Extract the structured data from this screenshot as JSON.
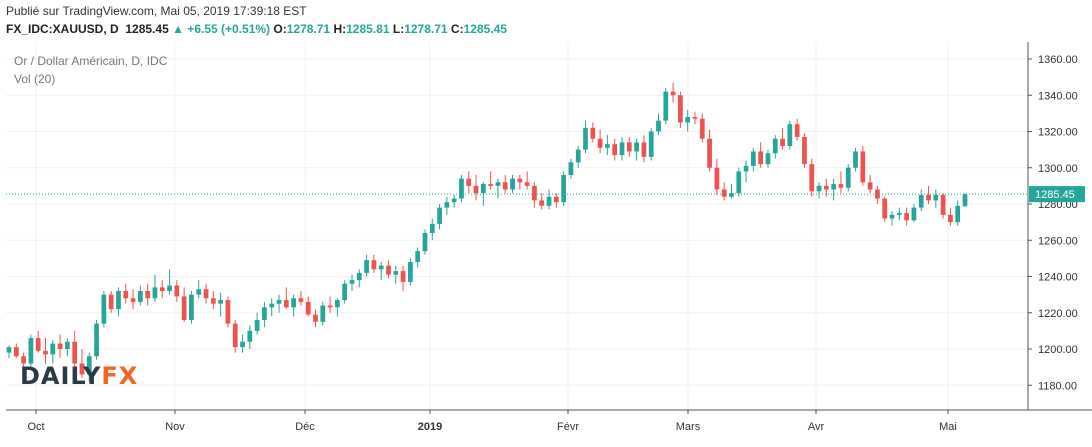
{
  "header": {
    "published": "Publié sur TradingView.com, Mai 05, 2019 17:39:18 EST",
    "symbol": "FX_IDC:XAUUSD, D",
    "last": "1285.45",
    "change": "▲ +6.55 (+0.51%)",
    "open_label": "O:",
    "open": "1278.71",
    "high_label": "H:",
    "high": "1285.81",
    "low_label": "L:",
    "low": "1278.71",
    "close_label": "C:",
    "close": "1285.45"
  },
  "legend": {
    "series_title": "Or / Dollar Américain, D, IDC",
    "volume": "Vol (20)"
  },
  "watermark": {
    "part1": "DAILY",
    "part2": "FX"
  },
  "colors": {
    "up": "#26a69a",
    "down": "#ef5350",
    "grid": "#eef1f4",
    "price_line": "#26a69a",
    "axis": "#555555",
    "watermark_dark": "#2c3a46",
    "watermark_accent": "#f26522"
  },
  "chart_data": {
    "type": "candlestick",
    "title": "Or / Dollar Américain, D, IDC",
    "ylim": [
      1165,
      1365
    ],
    "y_ticks": [
      "1360.00",
      "1340.00",
      "1320.00",
      "1300.00",
      "1280.00",
      "1260.00",
      "1240.00",
      "1220.00",
      "1200.00",
      "1180.00"
    ],
    "x_ticks": [
      "Oct",
      "Nov",
      "Déc",
      "2019",
      "Févr",
      "Mars",
      "Avr",
      "Mai"
    ],
    "last_price_label": "1285.45",
    "last_price": 1285.45,
    "grid": true,
    "candles": [
      [
        1198,
        1202,
        1195,
        1201
      ],
      [
        1201,
        1203,
        1195,
        1196
      ],
      [
        1196,
        1198,
        1190,
        1192
      ],
      [
        1192,
        1208,
        1190,
        1206
      ],
      [
        1206,
        1210,
        1198,
        1199
      ],
      [
        1199,
        1206,
        1192,
        1197
      ],
      [
        1197,
        1205,
        1192,
        1203
      ],
      [
        1203,
        1208,
        1195,
        1200
      ],
      [
        1200,
        1206,
        1196,
        1204
      ],
      [
        1204,
        1210,
        1188,
        1192
      ],
      [
        1192,
        1200,
        1184,
        1186
      ],
      [
        1186,
        1198,
        1182,
        1196
      ],
      [
        1196,
        1216,
        1194,
        1214
      ],
      [
        1214,
        1232,
        1212,
        1230
      ],
      [
        1230,
        1232,
        1220,
        1222
      ],
      [
        1222,
        1234,
        1218,
        1232
      ],
      [
        1232,
        1236,
        1225,
        1228
      ],
      [
        1228,
        1233,
        1222,
        1226
      ],
      [
        1226,
        1235,
        1224,
        1232
      ],
      [
        1232,
        1236,
        1224,
        1228
      ],
      [
        1228,
        1241,
        1226,
        1234
      ],
      [
        1234,
        1238,
        1228,
        1232
      ],
      [
        1232,
        1244,
        1230,
        1235
      ],
      [
        1235,
        1238,
        1226,
        1229
      ],
      [
        1229,
        1234,
        1215,
        1216
      ],
      [
        1216,
        1232,
        1214,
        1230
      ],
      [
        1230,
        1238,
        1228,
        1233
      ],
      [
        1233,
        1236,
        1225,
        1228
      ],
      [
        1228,
        1232,
        1222,
        1225
      ],
      [
        1225,
        1231,
        1218,
        1227
      ],
      [
        1227,
        1229,
        1212,
        1214
      ],
      [
        1214,
        1216,
        1198,
        1201
      ],
      [
        1201,
        1208,
        1198,
        1204
      ],
      [
        1204,
        1213,
        1200,
        1210
      ],
      [
        1210,
        1220,
        1208,
        1216
      ],
      [
        1216,
        1226,
        1212,
        1223
      ],
      [
        1223,
        1228,
        1218,
        1225
      ],
      [
        1225,
        1230,
        1220,
        1227
      ],
      [
        1227,
        1234,
        1222,
        1223
      ],
      [
        1223,
        1230,
        1218,
        1228
      ],
      [
        1228,
        1232,
        1224,
        1226
      ],
      [
        1226,
        1229,
        1218,
        1219
      ],
      [
        1219,
        1222,
        1212,
        1215
      ],
      [
        1215,
        1226,
        1213,
        1224
      ],
      [
        1224,
        1229,
        1220,
        1223
      ],
      [
        1223,
        1228,
        1218,
        1227
      ],
      [
        1227,
        1238,
        1225,
        1236
      ],
      [
        1236,
        1241,
        1232,
        1238
      ],
      [
        1238,
        1244,
        1234,
        1242
      ],
      [
        1242,
        1252,
        1240,
        1249
      ],
      [
        1249,
        1252,
        1242,
        1244
      ],
      [
        1244,
        1248,
        1238,
        1246
      ],
      [
        1246,
        1249,
        1239,
        1241
      ],
      [
        1241,
        1246,
        1236,
        1243
      ],
      [
        1243,
        1246,
        1232,
        1237
      ],
      [
        1237,
        1250,
        1235,
        1248
      ],
      [
        1248,
        1256,
        1245,
        1254
      ],
      [
        1254,
        1266,
        1252,
        1264
      ],
      [
        1264,
        1272,
        1260,
        1269
      ],
      [
        1269,
        1280,
        1266,
        1278
      ],
      [
        1278,
        1284,
        1274,
        1281
      ],
      [
        1281,
        1285,
        1278,
        1283
      ],
      [
        1283,
        1296,
        1281,
        1294
      ],
      [
        1294,
        1298,
        1286,
        1290
      ],
      [
        1290,
        1296,
        1282,
        1286
      ],
      [
        1286,
        1292,
        1279,
        1291
      ],
      [
        1291,
        1298,
        1288,
        1290
      ],
      [
        1290,
        1294,
        1283,
        1292
      ],
      [
        1292,
        1296,
        1286,
        1288
      ],
      [
        1288,
        1296,
        1286,
        1294
      ],
      [
        1294,
        1296,
        1288,
        1292
      ],
      [
        1292,
        1298,
        1288,
        1290
      ],
      [
        1290,
        1292,
        1278,
        1282
      ],
      [
        1282,
        1286,
        1277,
        1279
      ],
      [
        1279,
        1288,
        1277,
        1284
      ],
      [
        1284,
        1286,
        1278,
        1281
      ],
      [
        1281,
        1298,
        1279,
        1296
      ],
      [
        1296,
        1305,
        1294,
        1303
      ],
      [
        1303,
        1312,
        1300,
        1310
      ],
      [
        1310,
        1326,
        1308,
        1322
      ],
      [
        1322,
        1325,
        1314,
        1316
      ],
      [
        1316,
        1321,
        1308,
        1311
      ],
      [
        1311,
        1318,
        1307,
        1313
      ],
      [
        1313,
        1316,
        1304,
        1307
      ],
      [
        1307,
        1317,
        1304,
        1314
      ],
      [
        1314,
        1317,
        1306,
        1309
      ],
      [
        1309,
        1316,
        1304,
        1314
      ],
      [
        1314,
        1318,
        1303,
        1306
      ],
      [
        1306,
        1322,
        1304,
        1320
      ],
      [
        1320,
        1330,
        1318,
        1326
      ],
      [
        1326,
        1344,
        1324,
        1342
      ],
      [
        1342,
        1347,
        1336,
        1340
      ],
      [
        1340,
        1342,
        1322,
        1325
      ],
      [
        1325,
        1332,
        1320,
        1328
      ],
      [
        1328,
        1331,
        1324,
        1327
      ],
      [
        1327,
        1330,
        1314,
        1316
      ],
      [
        1316,
        1321,
        1298,
        1300
      ],
      [
        1300,
        1305,
        1285,
        1288
      ],
      [
        1288,
        1292,
        1282,
        1284
      ],
      [
        1284,
        1291,
        1283,
        1286
      ],
      [
        1286,
        1300,
        1284,
        1298
      ],
      [
        1298,
        1304,
        1292,
        1301
      ],
      [
        1301,
        1311,
        1298,
        1309
      ],
      [
        1309,
        1314,
        1300,
        1302
      ],
      [
        1302,
        1310,
        1300,
        1308
      ],
      [
        1308,
        1318,
        1305,
        1316
      ],
      [
        1316,
        1322,
        1310,
        1312
      ],
      [
        1312,
        1326,
        1310,
        1324
      ],
      [
        1324,
        1327,
        1315,
        1317
      ],
      [
        1317,
        1319,
        1300,
        1302
      ],
      [
        1302,
        1305,
        1284,
        1287
      ],
      [
        1287,
        1292,
        1283,
        1290
      ],
      [
        1290,
        1294,
        1284,
        1288
      ],
      [
        1288,
        1294,
        1282,
        1291
      ],
      [
        1291,
        1298,
        1286,
        1289
      ],
      [
        1289,
        1302,
        1287,
        1300
      ],
      [
        1300,
        1311,
        1298,
        1309
      ],
      [
        1309,
        1312,
        1290,
        1292
      ],
      [
        1292,
        1296,
        1286,
        1288
      ],
      [
        1288,
        1290,
        1280,
        1283
      ],
      [
        1283,
        1284,
        1270,
        1272
      ],
      [
        1272,
        1276,
        1268,
        1274
      ],
      [
        1274,
        1278,
        1271,
        1275
      ],
      [
        1275,
        1278,
        1268,
        1271
      ],
      [
        1271,
        1280,
        1270,
        1278
      ],
      [
        1278,
        1288,
        1276,
        1285
      ],
      [
        1285,
        1290,
        1280,
        1282
      ],
      [
        1282,
        1288,
        1278,
        1285
      ],
      [
        1285,
        1286,
        1272,
        1274
      ],
      [
        1274,
        1278,
        1268,
        1270
      ],
      [
        1270,
        1282,
        1268,
        1279
      ],
      [
        1278.71,
        1285.81,
        1278.71,
        1285.45
      ]
    ]
  }
}
